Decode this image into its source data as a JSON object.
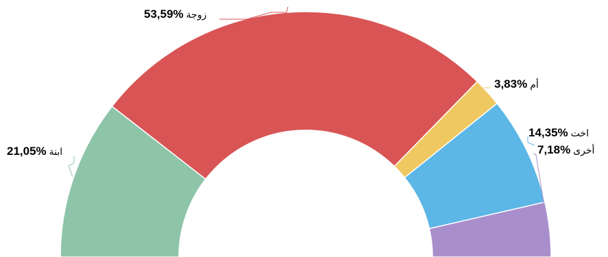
{
  "chart_data": {
    "type": "pie",
    "variant": "semi-donut",
    "title": "",
    "series": [
      {
        "name": "ابنة",
        "value": 21.05,
        "label": "21,05%",
        "color": "#8ec4a8"
      },
      {
        "name": "زوجة",
        "value": 53.59,
        "label": "53,59%",
        "color": "#d95555"
      },
      {
        "name": "أم",
        "value": 3.83,
        "label": "3,83%",
        "color": "#f0c862"
      },
      {
        "name": "اخت",
        "value": 14.35,
        "label": "14,35%",
        "color": "#5cb6e6"
      },
      {
        "name": "أخرى",
        "value": 7.18,
        "label": "7,18%",
        "color": "#a98ecc"
      }
    ]
  }
}
